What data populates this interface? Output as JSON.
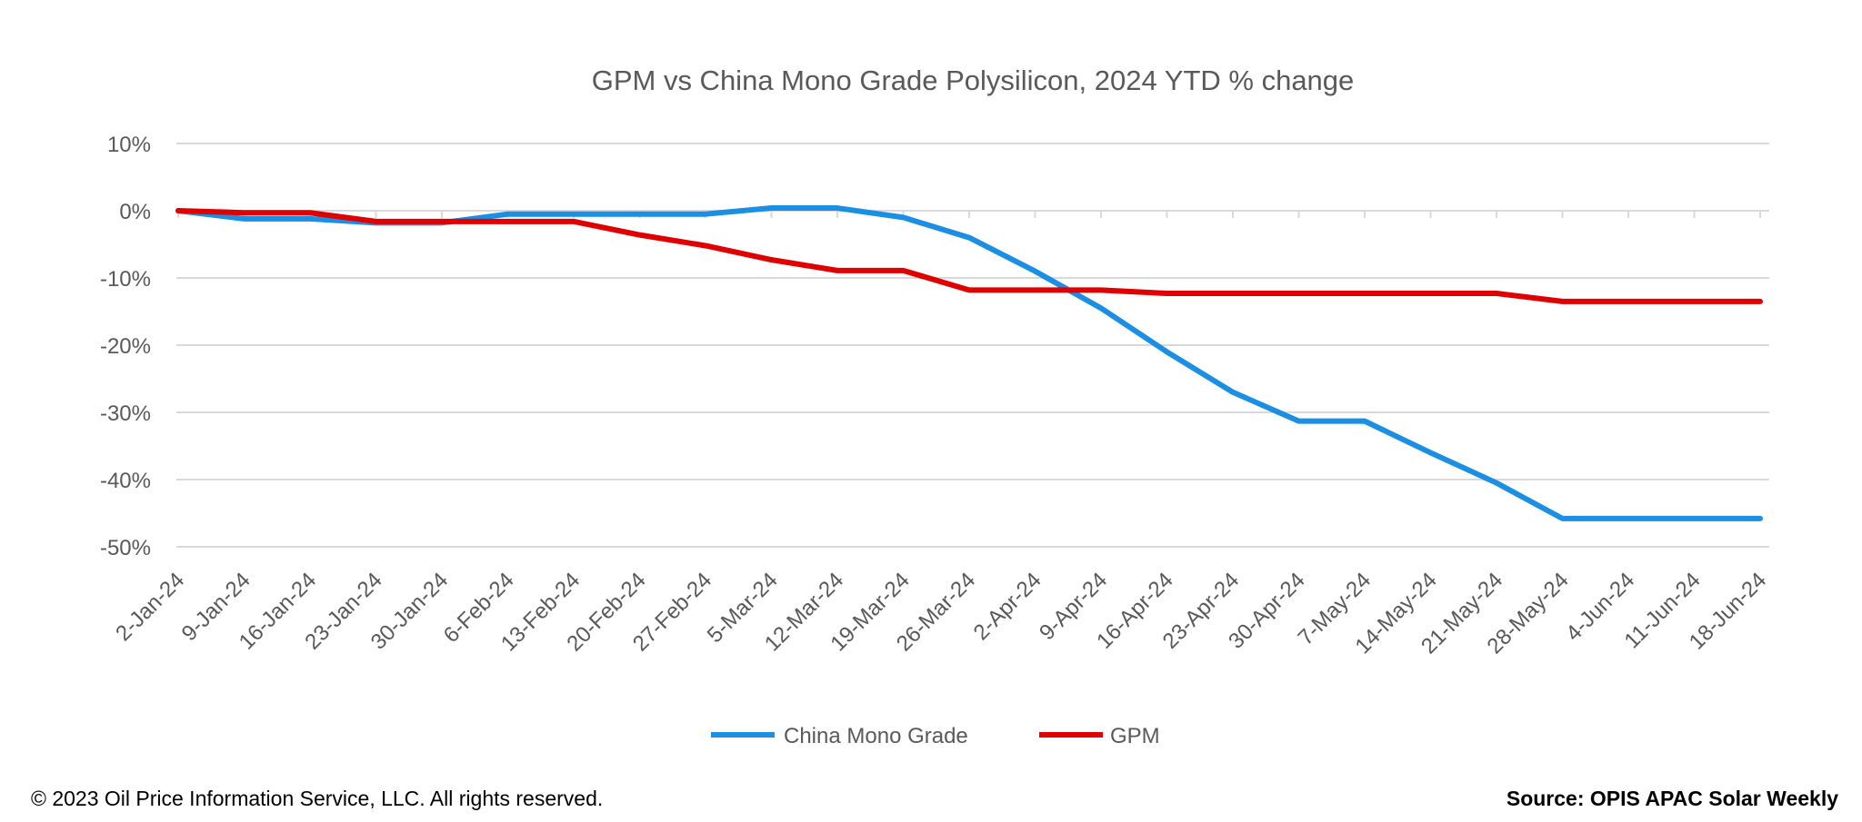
{
  "chart_data": {
    "type": "line",
    "title": "GPM vs China Mono Grade Polysilicon, 2024 YTD % change",
    "categories": [
      "2-Jan-24",
      "9-Jan-24",
      "16-Jan-24",
      "23-Jan-24",
      "30-Jan-24",
      "6-Feb-24",
      "13-Feb-24",
      "20-Feb-24",
      "27-Feb-24",
      "5-Mar-24",
      "12-Mar-24",
      "19-Mar-24",
      "26-Mar-24",
      "2-Apr-24",
      "9-Apr-24",
      "16-Apr-24",
      "23-Apr-24",
      "30-Apr-24",
      "7-May-24",
      "14-May-24",
      "21-May-24",
      "28-May-24",
      "4-Jun-24",
      "11-Jun-24",
      "18-Jun-24"
    ],
    "yticks": [
      10,
      0,
      -10,
      -20,
      -30,
      -40,
      -50
    ],
    "ytick_labels": [
      "10%",
      "0%",
      "-10%",
      "-20%",
      "-30%",
      "-40%",
      "-50%"
    ],
    "ylim": [
      -50,
      10
    ],
    "grid": true,
    "legend_position": "bottom",
    "series": [
      {
        "name": "China Mono Grade",
        "color": "#1a8fe3",
        "values": [
          0,
          -1.2,
          -1.2,
          -1.8,
          -1.8,
          -0.5,
          -0.5,
          -0.5,
          -0.5,
          0.4,
          0.4,
          -1.0,
          -4.0,
          -9.0,
          -14.5,
          -21.0,
          -27.0,
          -31.3,
          -31.3,
          -36.0,
          -40.5,
          -45.8,
          -45.8,
          -45.8,
          -45.8
        ]
      },
      {
        "name": "GPM",
        "color": "#e00000",
        "values": [
          0,
          -0.3,
          -0.3,
          -1.6,
          -1.6,
          -1.6,
          -1.6,
          -3.6,
          -5.2,
          -7.3,
          -8.9,
          -8.9,
          -11.8,
          -11.8,
          -11.8,
          -12.3,
          -12.3,
          -12.3,
          -12.3,
          -12.3,
          -12.3,
          -13.5,
          -13.5,
          -13.5,
          -13.5
        ]
      }
    ]
  },
  "footer": {
    "copyright": "© 2023 Oil Price Information Service, LLC. All rights reserved.",
    "source": "Source: OPIS APAC Solar Weekly"
  }
}
